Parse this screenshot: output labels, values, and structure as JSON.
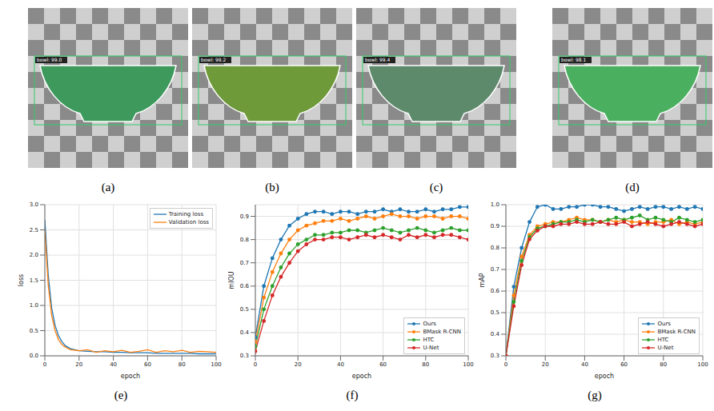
{
  "images": [
    {
      "caption": "(a)",
      "label": "bowl: 99.0",
      "color": "#3d9a5c"
    },
    {
      "caption": "(b)",
      "label": "bowl: 99.2",
      "color": "#6e9a3a"
    },
    {
      "caption": "(c)",
      "label": "bowl: 99.4",
      "color": "#5e8a6c"
    },
    {
      "caption": "(d)",
      "label": "bowl: 98.1",
      "color": "#4ab060"
    }
  ],
  "chart_data": [
    {
      "caption": "(e)",
      "type": "line",
      "x_label": "epoch",
      "y_label": "loss",
      "x": [
        0,
        2,
        4,
        6,
        8,
        10,
        12,
        15,
        20,
        25,
        30,
        35,
        40,
        45,
        50,
        55,
        60,
        65,
        70,
        75,
        80,
        85,
        90,
        95,
        100
      ],
      "xlim": [
        0,
        100
      ],
      "xticks": [
        0,
        20,
        40,
        60,
        80,
        100
      ],
      "ylim": [
        0,
        3
      ],
      "yticks": [
        {
          "value": 0,
          "label": "0.0"
        },
        0.5,
        {
          "value": 1,
          "label": "1.0"
        },
        1.5,
        {
          "value": 2,
          "label": "2.0"
        },
        2.5,
        {
          "value": 3,
          "label": "3.0"
        }
      ],
      "grid": true,
      "legend": "upper right",
      "marker": "none",
      "series": [
        {
          "name": "Training loss",
          "color": "#1f77b4",
          "values": [
            2.7,
            1.6,
            0.95,
            0.6,
            0.4,
            0.28,
            0.2,
            0.14,
            0.1,
            0.09,
            0.08,
            0.08,
            0.07,
            0.07,
            0.06,
            0.06,
            0.06,
            0.05,
            0.05,
            0.05,
            0.05,
            0.05,
            0.04,
            0.04,
            0.04
          ]
        },
        {
          "name": "Validation loss",
          "color": "#ff7f0e",
          "values": [
            2.5,
            1.4,
            0.8,
            0.5,
            0.32,
            0.22,
            0.17,
            0.12,
            0.1,
            0.12,
            0.07,
            0.1,
            0.08,
            0.11,
            0.07,
            0.09,
            0.12,
            0.07,
            0.1,
            0.08,
            0.11,
            0.07,
            0.09,
            0.08,
            0.07
          ]
        }
      ]
    },
    {
      "caption": "(f)",
      "type": "line",
      "x_label": "epoch",
      "y_label": "mIOU",
      "x": [
        0,
        4,
        8,
        12,
        16,
        20,
        24,
        28,
        32,
        36,
        40,
        44,
        48,
        52,
        56,
        60,
        64,
        68,
        72,
        76,
        80,
        84,
        88,
        92,
        96,
        100
      ],
      "xlim": [
        0,
        100
      ],
      "xticks": [
        0,
        20,
        40,
        60,
        80,
        100
      ],
      "ylim": [
        0.3,
        0.95
      ],
      "yticks": [
        0.3,
        0.4,
        0.5,
        0.6,
        0.7,
        0.8,
        0.9
      ],
      "grid": true,
      "legend": "lower right",
      "marker": "o",
      "series": [
        {
          "name": "Ours",
          "color": "#1f77b4",
          "values": [
            0.38,
            0.6,
            0.72,
            0.8,
            0.86,
            0.89,
            0.91,
            0.92,
            0.92,
            0.91,
            0.92,
            0.92,
            0.91,
            0.92,
            0.92,
            0.93,
            0.92,
            0.93,
            0.92,
            0.92,
            0.93,
            0.92,
            0.93,
            0.93,
            0.94,
            0.94
          ]
        },
        {
          "name": "BMask R-CNN",
          "color": "#ff7f0e",
          "values": [
            0.36,
            0.55,
            0.66,
            0.74,
            0.8,
            0.84,
            0.86,
            0.87,
            0.88,
            0.88,
            0.89,
            0.88,
            0.89,
            0.9,
            0.89,
            0.9,
            0.91,
            0.9,
            0.9,
            0.89,
            0.9,
            0.9,
            0.89,
            0.9,
            0.9,
            0.89
          ]
        },
        {
          "name": "HTC",
          "color": "#2ca02c",
          "values": [
            0.34,
            0.5,
            0.6,
            0.68,
            0.74,
            0.78,
            0.8,
            0.82,
            0.82,
            0.83,
            0.83,
            0.84,
            0.84,
            0.83,
            0.84,
            0.85,
            0.84,
            0.83,
            0.84,
            0.85,
            0.84,
            0.83,
            0.84,
            0.85,
            0.84,
            0.84
          ]
        },
        {
          "name": "U-Net",
          "color": "#d62728",
          "values": [
            0.32,
            0.45,
            0.56,
            0.64,
            0.7,
            0.75,
            0.78,
            0.8,
            0.8,
            0.81,
            0.81,
            0.8,
            0.81,
            0.82,
            0.81,
            0.82,
            0.81,
            0.8,
            0.82,
            0.81,
            0.82,
            0.81,
            0.82,
            0.82,
            0.81,
            0.8
          ]
        }
      ]
    },
    {
      "caption": "(g)",
      "type": "line",
      "x_label": "epoch",
      "y_label": "mAP",
      "x": [
        0,
        4,
        8,
        12,
        16,
        20,
        24,
        28,
        32,
        36,
        40,
        44,
        48,
        52,
        56,
        60,
        64,
        68,
        72,
        76,
        80,
        84,
        88,
        92,
        96,
        100
      ],
      "xlim": [
        0,
        100
      ],
      "xticks": [
        0,
        20,
        40,
        60,
        80,
        100
      ],
      "ylim": [
        0.3,
        1
      ],
      "yticks": [
        0.3,
        0.4,
        0.5,
        0.6,
        0.7,
        0.8,
        0.9,
        {
          "value": 1,
          "label": "1.0"
        }
      ],
      "grid": true,
      "legend": "lower right",
      "marker": "o",
      "series": [
        {
          "name": "Ours",
          "color": "#1f77b4",
          "values": [
            0.3,
            0.62,
            0.8,
            0.92,
            0.99,
            1.0,
            0.98,
            0.98,
            0.99,
            0.99,
            1.0,
            1.0,
            0.99,
            0.99,
            0.98,
            0.97,
            0.98,
            0.99,
            0.98,
            0.99,
            0.99,
            0.98,
            0.99,
            0.98,
            0.99,
            0.98
          ]
        },
        {
          "name": "BMask R-CNN",
          "color": "#ff7f0e",
          "values": [
            0.3,
            0.58,
            0.76,
            0.86,
            0.9,
            0.91,
            0.92,
            0.92,
            0.93,
            0.94,
            0.93,
            0.93,
            0.92,
            0.93,
            0.92,
            0.93,
            0.92,
            0.92,
            0.91,
            0.92,
            0.92,
            0.93,
            0.91,
            0.92,
            0.91,
            0.92
          ]
        },
        {
          "name": "HTC",
          "color": "#2ca02c",
          "values": [
            0.3,
            0.55,
            0.74,
            0.85,
            0.89,
            0.9,
            0.91,
            0.92,
            0.92,
            0.93,
            0.92,
            0.93,
            0.92,
            0.93,
            0.94,
            0.93,
            0.94,
            0.95,
            0.93,
            0.94,
            0.93,
            0.92,
            0.94,
            0.93,
            0.92,
            0.93
          ]
        },
        {
          "name": "U-Net",
          "color": "#d62728",
          "values": [
            0.3,
            0.53,
            0.72,
            0.84,
            0.88,
            0.9,
            0.9,
            0.91,
            0.91,
            0.92,
            0.91,
            0.91,
            0.92,
            0.91,
            0.91,
            0.92,
            0.9,
            0.91,
            0.92,
            0.91,
            0.9,
            0.91,
            0.92,
            0.91,
            0.9,
            0.91
          ]
        }
      ]
    }
  ]
}
